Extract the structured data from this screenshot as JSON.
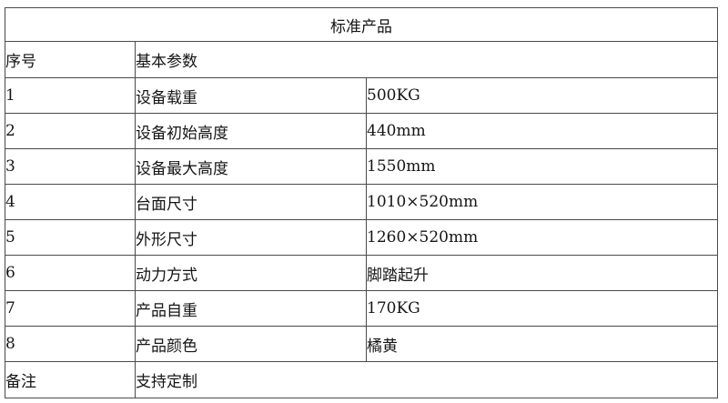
{
  "table": {
    "title": "标准产品",
    "header": {
      "no_label": "序号",
      "params_label": "基本参数"
    },
    "rows": [
      {
        "no": "1",
        "label": "设备载重",
        "value": "500KG"
      },
      {
        "no": "2",
        "label": "设备初始高度",
        "value": "440mm"
      },
      {
        "no": "3",
        "label": "设备最大高度",
        "value": "1550mm"
      },
      {
        "no": "4",
        "label": "台面尺寸",
        "value": "1010×520mm"
      },
      {
        "no": "5",
        "label": "外形尺寸",
        "value": "1260×520mm"
      },
      {
        "no": "6",
        "label": "动力方式",
        "value": "脚踏起升"
      },
      {
        "no": "7",
        "label": "产品自重",
        "value": "170KG"
      },
      {
        "no": "8",
        "label": "产品颜色",
        "value": "橘黄"
      }
    ],
    "footer": {
      "remark_label": "备注",
      "remark_value": "支持定制"
    },
    "colors": {
      "border": "#4a4a4a",
      "text": "#151515",
      "background": "#ffffff"
    }
  }
}
